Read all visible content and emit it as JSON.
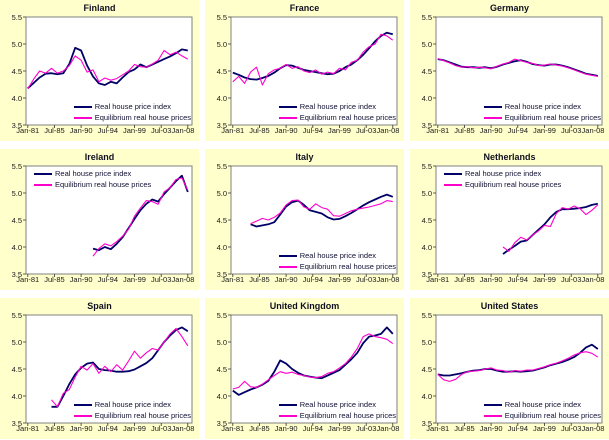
{
  "page": {
    "panel_background": "#FFFFCC",
    "plot_background": "#FFFFFF",
    "plot_border_color": "#808080",
    "tick_color": "#333333"
  },
  "colors": {
    "real": "#000066",
    "equilibrium": "#FF00CC"
  },
  "legend": {
    "real_label": "Real house price index",
    "equilibrium_label": "Equilibrium real house prices"
  },
  "axes": {
    "y_tick_labels": [
      "5.5",
      "5.0",
      "4.5",
      "4.0",
      "3.5"
    ],
    "y_tick_values": [
      5.5,
      5.0,
      4.5,
      4.0,
      3.5
    ],
    "x_tick_labels": [
      "Jan-81",
      "Jul-85",
      "Jan-90",
      "Jul-94",
      "Jan-99",
      "Jul-03",
      "Jan-08"
    ],
    "x_tick_years": [
      1981,
      1985.5,
      1990,
      1994.5,
      1999,
      2003.5,
      2008
    ],
    "ylim": [
      3.5,
      5.5
    ],
    "xlim": [
      1980.7,
      2008.7
    ],
    "grid": false
  },
  "chart_data": [
    {
      "type": "line",
      "title": "Finland",
      "legend_position": "bottom-right",
      "start_year": 1981,
      "series": [
        {
          "name": "Real house price index",
          "key": "real",
          "values": [
            4.18,
            4.28,
            4.38,
            4.45,
            4.46,
            4.44,
            4.46,
            4.63,
            4.93,
            4.88,
            4.6,
            4.4,
            4.27,
            4.24,
            4.3,
            4.27,
            4.38,
            4.48,
            4.53,
            4.62,
            4.57,
            4.62,
            4.67,
            4.72,
            4.77,
            4.83,
            4.9,
            4.88
          ]
        },
        {
          "name": "Equilibrium real house prices",
          "key": "equilibrium",
          "values": [
            4.17,
            4.35,
            4.5,
            4.46,
            4.55,
            4.46,
            4.5,
            4.6,
            4.78,
            4.7,
            4.48,
            4.52,
            4.3,
            4.37,
            4.33,
            4.36,
            4.43,
            4.5,
            4.62,
            4.58,
            4.57,
            4.63,
            4.7,
            4.88,
            4.8,
            4.85,
            4.78,
            4.72
          ]
        }
      ]
    },
    {
      "type": "line",
      "title": "France",
      "legend_position": "bottom-right",
      "start_year": 1981,
      "series": [
        {
          "name": "Real house price index",
          "key": "real",
          "values": [
            4.47,
            4.43,
            4.38,
            4.35,
            4.34,
            4.37,
            4.41,
            4.47,
            4.55,
            4.61,
            4.6,
            4.56,
            4.52,
            4.5,
            4.48,
            4.46,
            4.44,
            4.45,
            4.5,
            4.57,
            4.62,
            4.7,
            4.8,
            4.92,
            5.05,
            5.15,
            5.21,
            5.18
          ]
        },
        {
          "name": "Equilibrium real house prices",
          "key": "equilibrium",
          "values": [
            4.3,
            4.4,
            4.27,
            4.48,
            4.57,
            4.24,
            4.45,
            4.52,
            4.55,
            4.62,
            4.55,
            4.58,
            4.5,
            4.47,
            4.52,
            4.44,
            4.48,
            4.45,
            4.55,
            4.52,
            4.66,
            4.7,
            4.85,
            4.95,
            5.0,
            5.18,
            5.15,
            5.07
          ]
        }
      ]
    },
    {
      "type": "line",
      "title": "Germany",
      "legend_position": "bottom-right",
      "start_year": 1981,
      "series": [
        {
          "name": "Real house price index",
          "key": "real",
          "values": [
            4.72,
            4.7,
            4.66,
            4.62,
            4.58,
            4.57,
            4.57,
            4.56,
            4.57,
            4.55,
            4.58,
            4.62,
            4.65,
            4.68,
            4.7,
            4.67,
            4.63,
            4.61,
            4.6,
            4.62,
            4.62,
            4.6,
            4.57,
            4.53,
            4.49,
            4.45,
            4.43,
            4.41
          ]
        },
        {
          "name": "Equilibrium real house prices",
          "key": "equilibrium",
          "values": [
            4.73,
            4.69,
            4.65,
            4.6,
            4.57,
            4.58,
            4.56,
            4.57,
            4.56,
            4.54,
            4.59,
            4.63,
            4.66,
            4.72,
            4.69,
            4.66,
            4.64,
            4.6,
            4.61,
            4.63,
            4.61,
            4.59,
            4.56,
            4.52,
            4.48,
            4.44,
            4.42,
            4.4
          ]
        }
      ]
    },
    {
      "type": "line",
      "title": "Ireland",
      "legend_position": "top-left",
      "start_year": 1992,
      "series": [
        {
          "name": "Real house price index",
          "key": "real",
          "values": [
            3.97,
            3.94,
            4.0,
            3.96,
            4.06,
            4.18,
            4.35,
            4.52,
            4.68,
            4.8,
            4.88,
            4.84,
            4.98,
            5.1,
            5.22,
            5.32,
            5.02
          ]
        },
        {
          "name": "Equilibrium real house prices",
          "key": "equilibrium",
          "values": [
            3.83,
            3.97,
            4.06,
            4.02,
            4.1,
            4.2,
            4.33,
            4.57,
            4.72,
            4.86,
            4.84,
            4.79,
            5.02,
            5.1,
            5.25,
            5.28,
            5.05
          ]
        }
      ]
    },
    {
      "type": "line",
      "title": "Italy",
      "legend_position": "bottom-right",
      "start_year": 1984,
      "series": [
        {
          "name": "Real house price index",
          "key": "real",
          "values": [
            4.42,
            4.38,
            4.4,
            4.42,
            4.46,
            4.6,
            4.75,
            4.83,
            4.86,
            4.78,
            4.68,
            4.65,
            4.62,
            4.55,
            4.51,
            4.52,
            4.57,
            4.63,
            4.7,
            4.77,
            4.83,
            4.88,
            4.93,
            4.97,
            4.93
          ]
        },
        {
          "name": "Equilibrium real house prices",
          "key": "equilibrium",
          "values": [
            4.43,
            4.48,
            4.53,
            4.5,
            4.55,
            4.63,
            4.78,
            4.86,
            4.87,
            4.74,
            4.7,
            4.8,
            4.73,
            4.7,
            4.58,
            4.57,
            4.62,
            4.67,
            4.7,
            4.72,
            4.74,
            4.77,
            4.8,
            4.86,
            4.84
          ]
        }
      ]
    },
    {
      "type": "line",
      "title": "Netherlands",
      "legend_position": "top-left",
      "start_year": 1992,
      "series": [
        {
          "name": "Real house price index",
          "key": "real",
          "values": [
            3.87,
            3.95,
            4.02,
            4.1,
            4.12,
            4.22,
            4.32,
            4.42,
            4.55,
            4.65,
            4.7,
            4.7,
            4.71,
            4.72,
            4.74,
            4.78,
            4.8
          ]
        },
        {
          "name": "Equilibrium real house prices",
          "key": "equilibrium",
          "values": [
            4.0,
            3.92,
            4.08,
            4.18,
            4.13,
            4.22,
            4.3,
            4.4,
            4.38,
            4.62,
            4.73,
            4.7,
            4.76,
            4.71,
            4.6,
            4.68,
            4.78
          ]
        }
      ]
    },
    {
      "type": "line",
      "title": "Spain",
      "legend_position": "bottom-right",
      "start_year": 1985,
      "series": [
        {
          "name": "Real house price index",
          "key": "real",
          "values": [
            3.8,
            3.8,
            4.0,
            4.22,
            4.4,
            4.52,
            4.6,
            4.62,
            4.5,
            4.48,
            4.47,
            4.45,
            4.45,
            4.46,
            4.49,
            4.55,
            4.61,
            4.7,
            4.85,
            5.0,
            5.12,
            5.22,
            5.27,
            5.2
          ]
        },
        {
          "name": "Equilibrium real house prices",
          "key": "equilibrium",
          "values": [
            3.93,
            3.8,
            4.05,
            4.12,
            4.35,
            4.55,
            4.48,
            4.6,
            4.42,
            4.55,
            4.45,
            4.58,
            4.48,
            4.65,
            4.83,
            4.7,
            4.8,
            4.88,
            4.85,
            5.0,
            5.15,
            5.25,
            5.1,
            4.93
          ]
        }
      ]
    },
    {
      "type": "line",
      "title": "United Kingdom",
      "legend_position": "bottom-right",
      "start_year": 1981,
      "series": [
        {
          "name": "Real house price index",
          "key": "real",
          "values": [
            4.1,
            4.02,
            4.07,
            4.12,
            4.16,
            4.21,
            4.28,
            4.45,
            4.66,
            4.6,
            4.5,
            4.43,
            4.38,
            4.36,
            4.34,
            4.33,
            4.38,
            4.43,
            4.48,
            4.58,
            4.68,
            4.8,
            4.98,
            5.1,
            5.12,
            5.15,
            5.27,
            5.15
          ]
        },
        {
          "name": "Equilibrium real house prices",
          "key": "equilibrium",
          "values": [
            4.13,
            4.16,
            4.27,
            4.17,
            4.16,
            4.22,
            4.3,
            4.38,
            4.45,
            4.42,
            4.44,
            4.4,
            4.38,
            4.35,
            4.34,
            4.36,
            4.42,
            4.45,
            4.52,
            4.6,
            4.72,
            4.88,
            5.1,
            5.15,
            5.1,
            5.08,
            5.05,
            4.97
          ]
        }
      ]
    },
    {
      "type": "line",
      "title": "United States",
      "legend_position": "bottom-right",
      "start_year": 1981,
      "series": [
        {
          "name": "Real house price index",
          "key": "real",
          "values": [
            4.4,
            4.38,
            4.38,
            4.4,
            4.42,
            4.45,
            4.47,
            4.48,
            4.5,
            4.5,
            4.47,
            4.45,
            4.45,
            4.46,
            4.45,
            4.46,
            4.47,
            4.5,
            4.53,
            4.57,
            4.6,
            4.63,
            4.67,
            4.72,
            4.8,
            4.9,
            4.95,
            4.87
          ]
        },
        {
          "name": "Equilibrium real house prices",
          "key": "equilibrium",
          "values": [
            4.4,
            4.3,
            4.27,
            4.31,
            4.4,
            4.45,
            4.46,
            4.47,
            4.5,
            4.52,
            4.48,
            4.47,
            4.44,
            4.47,
            4.46,
            4.48,
            4.48,
            4.51,
            4.54,
            4.58,
            4.61,
            4.65,
            4.7,
            4.76,
            4.8,
            4.82,
            4.79,
            4.72
          ]
        }
      ]
    }
  ]
}
